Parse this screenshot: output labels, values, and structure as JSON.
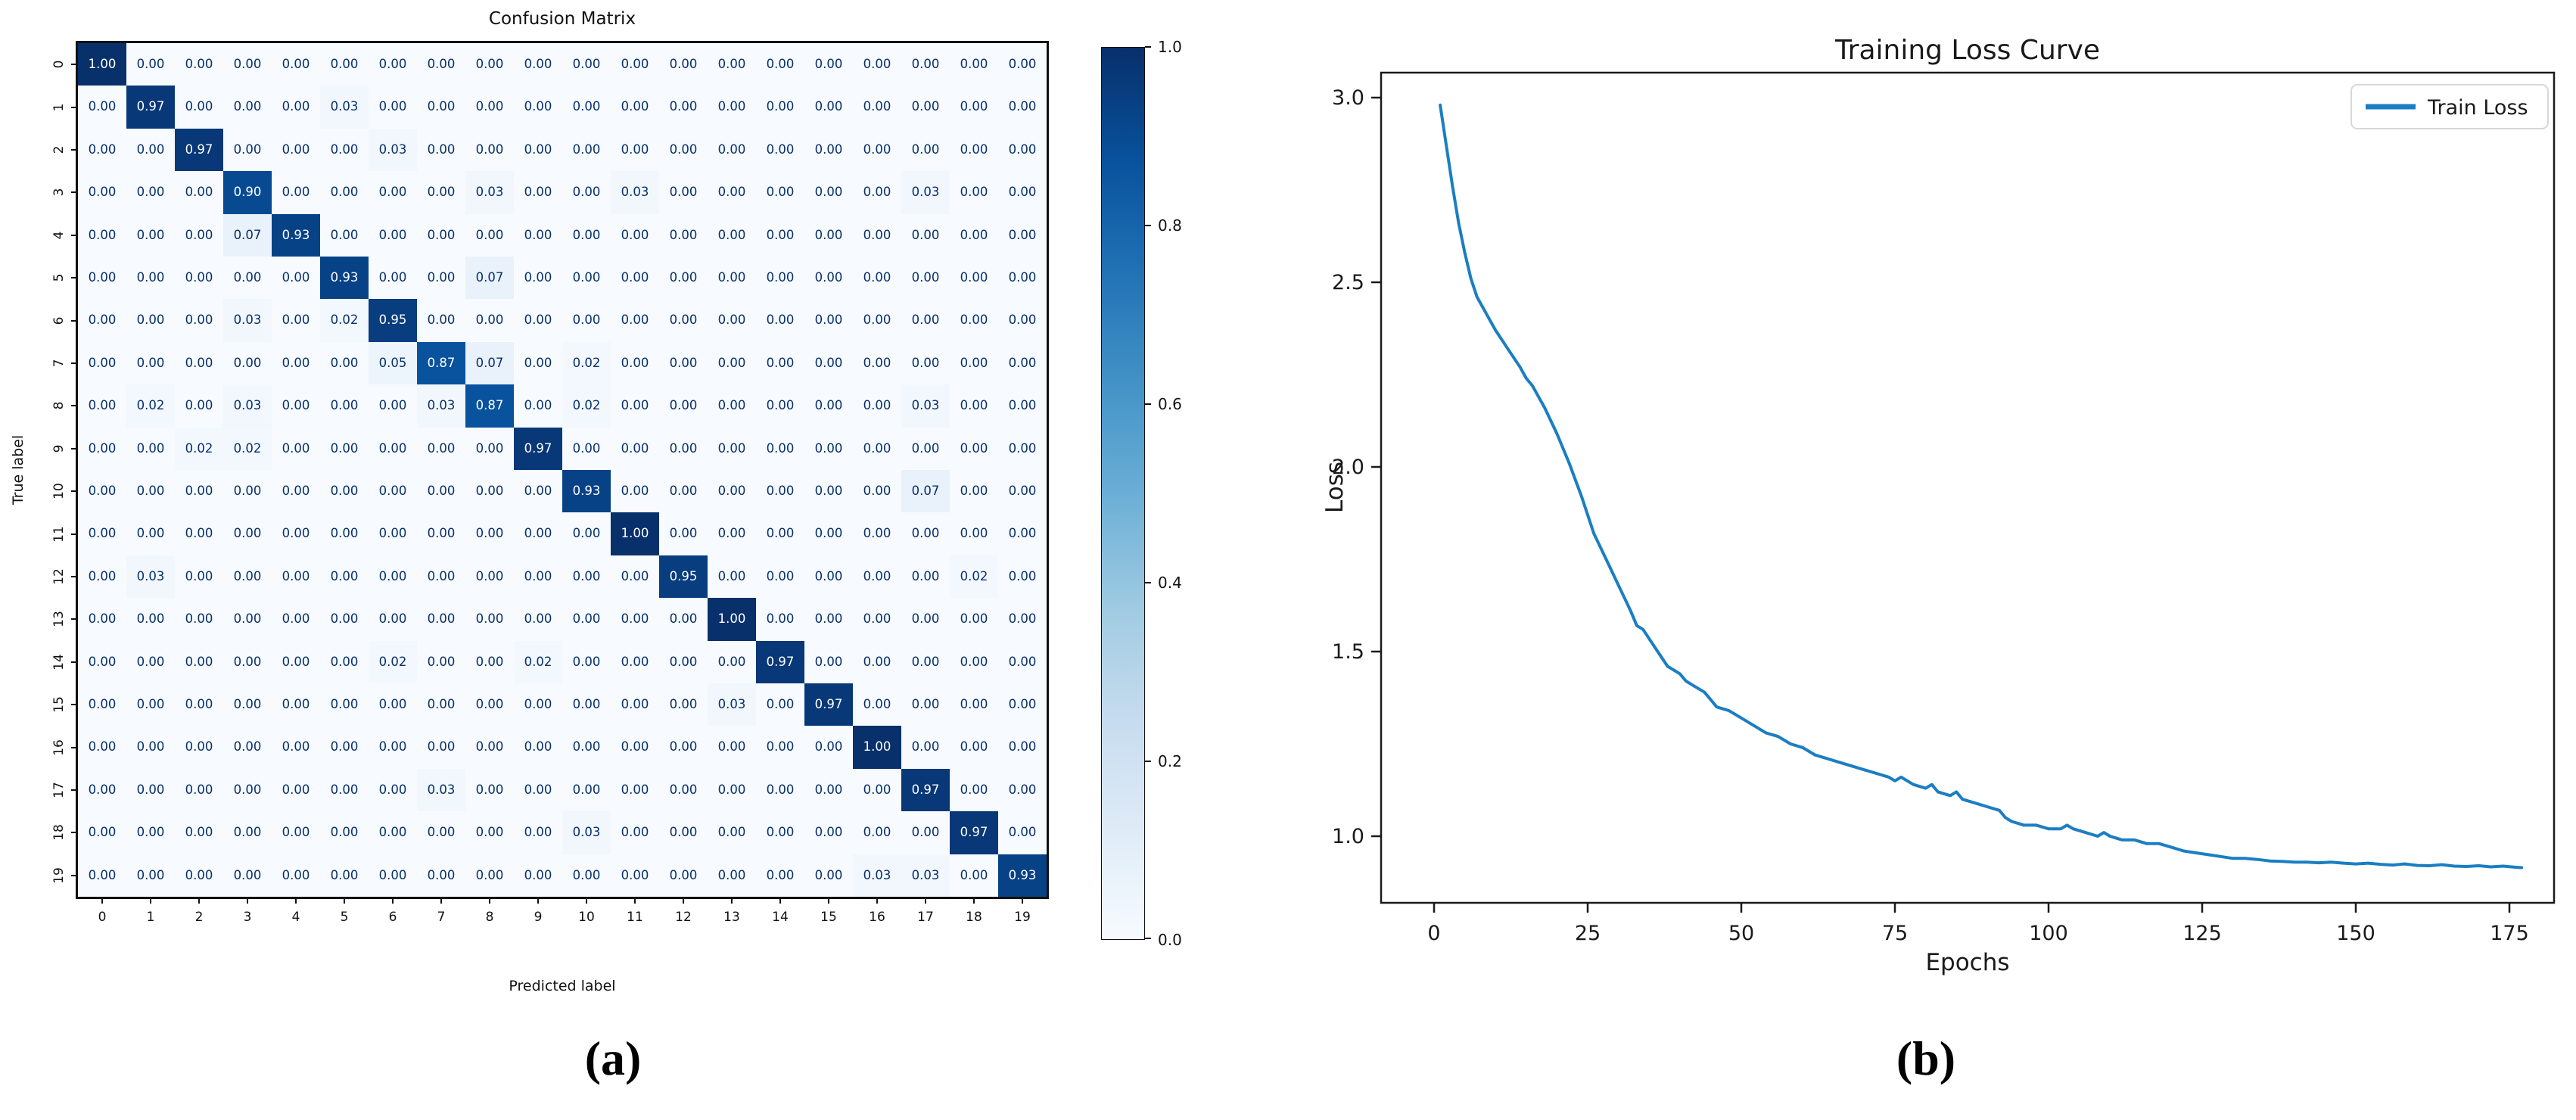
{
  "panel_a": {
    "title": "Confusion Matrix",
    "xlabel": "Predicted label",
    "ylabel": "True label",
    "caption": "(a)",
    "x_tick_labels": [
      "0",
      "1",
      "2",
      "3",
      "4",
      "5",
      "6",
      "7",
      "8",
      "9",
      "10",
      "11",
      "12",
      "13",
      "14",
      "15",
      "16",
      "17",
      "18",
      "19"
    ],
    "y_tick_labels": [
      "0",
      "1",
      "2",
      "3",
      "4",
      "5",
      "6",
      "7",
      "8",
      "9",
      "10",
      "11",
      "12",
      "13",
      "14",
      "15",
      "16",
      "17",
      "18",
      "19"
    ],
    "colorbar_tick_labels": [
      "1.0",
      "0.8",
      "0.6",
      "0.4",
      "0.2",
      "0.0"
    ]
  },
  "panel_b": {
    "title": "Training Loss Curve",
    "xlabel": "Epochs",
    "ylabel": "Loss",
    "caption": "(b)",
    "legend_label": "Train Loss",
    "x_tick_labels": [
      "0",
      "25",
      "50",
      "75",
      "100",
      "125",
      "150",
      "175"
    ],
    "y_tick_labels": [
      "3.0",
      "2.5",
      "2.0",
      "1.5",
      "1.0"
    ]
  },
  "colors": {
    "train_loss_line": "#1b7ec2",
    "text_dark_on_cell": "#08306b",
    "text_light_on_cell": "#ffffff",
    "axis_line": "#1a1a1a",
    "legend_border": "#d8d8d8",
    "blues_colormap_stops": [
      "#f7fbff",
      "#deebf7",
      "#c6dbef",
      "#9ecae1",
      "#6baed6",
      "#4292c6",
      "#2171b5",
      "#08519c",
      "#08306b"
    ]
  },
  "chart_data": [
    {
      "type": "heatmap",
      "title": "Confusion Matrix",
      "xlabel": "Predicted label",
      "ylabel": "True label",
      "x_labels": [
        "0",
        "1",
        "2",
        "3",
        "4",
        "5",
        "6",
        "7",
        "8",
        "9",
        "10",
        "11",
        "12",
        "13",
        "14",
        "15",
        "16",
        "17",
        "18",
        "19"
      ],
      "y_labels": [
        "0",
        "1",
        "2",
        "3",
        "4",
        "5",
        "6",
        "7",
        "8",
        "9",
        "10",
        "11",
        "12",
        "13",
        "14",
        "15",
        "16",
        "17",
        "18",
        "19"
      ],
      "colormap": "Blues",
      "vmin": 0.0,
      "vmax": 1.0,
      "colorbar_ticks": [
        1.0,
        0.8,
        0.6,
        0.4,
        0.2,
        0.0
      ],
      "value_format": "0.00",
      "values": [
        [
          1,
          0,
          0,
          0,
          0,
          0,
          0,
          0,
          0,
          0,
          0,
          0,
          0,
          0,
          0,
          0,
          0,
          0,
          0,
          0
        ],
        [
          0,
          0.97,
          0,
          0,
          0,
          0.03,
          0,
          0,
          0,
          0,
          0,
          0,
          0,
          0,
          0,
          0,
          0,
          0,
          0,
          0
        ],
        [
          0,
          0,
          0.97,
          0,
          0,
          0,
          0.03,
          0,
          0,
          0,
          0,
          0,
          0,
          0,
          0,
          0,
          0,
          0,
          0,
          0
        ],
        [
          0,
          0,
          0,
          0.9,
          0,
          0,
          0,
          0,
          0.03,
          0,
          0,
          0.03,
          0,
          0,
          0,
          0,
          0,
          0.03,
          0,
          0
        ],
        [
          0,
          0,
          0,
          0.07,
          0.93,
          0,
          0,
          0,
          0,
          0,
          0,
          0,
          0,
          0,
          0,
          0,
          0,
          0,
          0,
          0
        ],
        [
          0,
          0,
          0,
          0,
          0,
          0.93,
          0,
          0,
          0.07,
          0,
          0,
          0,
          0,
          0,
          0,
          0,
          0,
          0,
          0,
          0
        ],
        [
          0,
          0,
          0,
          0.03,
          0,
          0.02,
          0.95,
          0,
          0,
          0,
          0,
          0,
          0,
          0,
          0,
          0,
          0,
          0,
          0,
          0
        ],
        [
          0,
          0,
          0,
          0,
          0,
          0,
          0.05,
          0.87,
          0.07,
          0,
          0.02,
          0,
          0,
          0,
          0,
          0,
          0,
          0,
          0,
          0
        ],
        [
          0,
          0.02,
          0,
          0.03,
          0,
          0,
          0,
          0.03,
          0.87,
          0,
          0.02,
          0,
          0,
          0,
          0,
          0,
          0,
          0.03,
          0,
          0
        ],
        [
          0,
          0,
          0.02,
          0.02,
          0,
          0,
          0,
          0,
          0,
          0.97,
          0,
          0,
          0,
          0,
          0,
          0,
          0,
          0,
          0,
          0
        ],
        [
          0,
          0,
          0,
          0,
          0,
          0,
          0,
          0,
          0,
          0,
          0.93,
          0,
          0,
          0,
          0,
          0,
          0,
          0.07,
          0,
          0
        ],
        [
          0,
          0,
          0,
          0,
          0,
          0,
          0,
          0,
          0,
          0,
          0,
          1.0,
          0,
          0,
          0,
          0,
          0,
          0,
          0,
          0
        ],
        [
          0,
          0.03,
          0,
          0,
          0,
          0,
          0,
          0,
          0,
          0,
          0,
          0,
          0.95,
          0,
          0,
          0,
          0,
          0,
          0.02,
          0
        ],
        [
          0,
          0,
          0,
          0,
          0,
          0,
          0,
          0,
          0,
          0,
          0,
          0,
          0,
          1.0,
          0,
          0,
          0,
          0,
          0,
          0
        ],
        [
          0,
          0,
          0,
          0,
          0,
          0,
          0.02,
          0,
          0,
          0.02,
          0,
          0,
          0,
          0,
          0.97,
          0,
          0,
          0,
          0,
          0
        ],
        [
          0,
          0,
          0,
          0,
          0,
          0,
          0,
          0,
          0,
          0,
          0,
          0,
          0,
          0.03,
          0,
          0.97,
          0,
          0,
          0,
          0
        ],
        [
          0,
          0,
          0,
          0,
          0,
          0,
          0,
          0,
          0,
          0,
          0,
          0,
          0,
          0,
          0,
          0,
          1.0,
          0,
          0,
          0
        ],
        [
          0,
          0,
          0,
          0,
          0,
          0,
          0,
          0.03,
          0,
          0,
          0,
          0,
          0,
          0,
          0,
          0,
          0,
          0.97,
          0,
          0
        ],
        [
          0,
          0,
          0,
          0,
          0,
          0,
          0,
          0,
          0,
          0,
          0.03,
          0,
          0,
          0,
          0,
          0,
          0,
          0,
          0.97,
          0
        ],
        [
          0,
          0,
          0,
          0,
          0,
          0,
          0,
          0,
          0,
          0,
          0,
          0,
          0,
          0,
          0,
          0,
          0.03,
          0.03,
          0,
          0.93
        ]
      ]
    },
    {
      "type": "line",
      "title": "Training Loss Curve",
      "xlabel": "Epochs",
      "ylabel": "Loss",
      "legend_position": "upper right",
      "grid": false,
      "x_ticks": [
        0,
        25,
        50,
        75,
        100,
        125,
        150,
        175
      ],
      "y_ticks": [
        3.0,
        2.5,
        2.0,
        1.5,
        1.0
      ],
      "xlim": [
        -8.6,
        182.4
      ],
      "ylim": [
        0.83,
        3.07
      ],
      "series": [
        {
          "name": "Train Loss",
          "color": "#1b7ec2",
          "points": [
            [
              1,
              2.98
            ],
            [
              2,
              2.87
            ],
            [
              3,
              2.76
            ],
            [
              4,
              2.66
            ],
            [
              5,
              2.58
            ],
            [
              6,
              2.51
            ],
            [
              7,
              2.46
            ],
            [
              8,
              2.43
            ],
            [
              9,
              2.4
            ],
            [
              10,
              2.37
            ],
            [
              12,
              2.32
            ],
            [
              14,
              2.27
            ],
            [
              15,
              2.24
            ],
            [
              16,
              2.22
            ],
            [
              18,
              2.16
            ],
            [
              20,
              2.09
            ],
            [
              22,
              2.01
            ],
            [
              24,
              1.92
            ],
            [
              25,
              1.87
            ],
            [
              26,
              1.82
            ],
            [
              28,
              1.75
            ],
            [
              30,
              1.68
            ],
            [
              32,
              1.61
            ],
            [
              33,
              1.57
            ],
            [
              34,
              1.56
            ],
            [
              36,
              1.51
            ],
            [
              38,
              1.46
            ],
            [
              40,
              1.44
            ],
            [
              41,
              1.42
            ],
            [
              42,
              1.41
            ],
            [
              44,
              1.39
            ],
            [
              45,
              1.37
            ],
            [
              46,
              1.35
            ],
            [
              48,
              1.34
            ],
            [
              50,
              1.32
            ],
            [
              52,
              1.3
            ],
            [
              54,
              1.28
            ],
            [
              56,
              1.27
            ],
            [
              58,
              1.25
            ],
            [
              60,
              1.24
            ],
            [
              62,
              1.22
            ],
            [
              64,
              1.21
            ],
            [
              66,
              1.2
            ],
            [
              68,
              1.19
            ],
            [
              70,
              1.18
            ],
            [
              72,
              1.17
            ],
            [
              74,
              1.16
            ],
            [
              75,
              1.15
            ],
            [
              76,
              1.16
            ],
            [
              78,
              1.14
            ],
            [
              80,
              1.13
            ],
            [
              81,
              1.14
            ],
            [
              82,
              1.12
            ],
            [
              84,
              1.11
            ],
            [
              85,
              1.12
            ],
            [
              86,
              1.1
            ],
            [
              88,
              1.09
            ],
            [
              90,
              1.08
            ],
            [
              92,
              1.07
            ],
            [
              93,
              1.05
            ],
            [
              94,
              1.04
            ],
            [
              96,
              1.03
            ],
            [
              98,
              1.03
            ],
            [
              100,
              1.02
            ],
            [
              102,
              1.02
            ],
            [
              103,
              1.03
            ],
            [
              104,
              1.02
            ],
            [
              106,
              1.01
            ],
            [
              108,
              1.0
            ],
            [
              109,
              1.01
            ],
            [
              110,
              1.0
            ],
            [
              112,
              0.99
            ],
            [
              114,
              0.99
            ],
            [
              116,
              0.98
            ],
            [
              118,
              0.98
            ],
            [
              120,
              0.97
            ],
            [
              122,
              0.96
            ],
            [
              124,
              0.955
            ],
            [
              126,
              0.95
            ],
            [
              128,
              0.945
            ],
            [
              130,
              0.94
            ],
            [
              132,
              0.94
            ],
            [
              134,
              0.937
            ],
            [
              136,
              0.933
            ],
            [
              138,
              0.932
            ],
            [
              140,
              0.93
            ],
            [
              142,
              0.93
            ],
            [
              144,
              0.928
            ],
            [
              146,
              0.93
            ],
            [
              148,
              0.927
            ],
            [
              150,
              0.925
            ],
            [
              152,
              0.927
            ],
            [
              154,
              0.924
            ],
            [
              156,
              0.922
            ],
            [
              158,
              0.925
            ],
            [
              160,
              0.921
            ],
            [
              162,
              0.92
            ],
            [
              164,
              0.923
            ],
            [
              166,
              0.919
            ],
            [
              168,
              0.918
            ],
            [
              170,
              0.92
            ],
            [
              172,
              0.917
            ],
            [
              174,
              0.919
            ],
            [
              176,
              0.916
            ],
            [
              177,
              0.915
            ]
          ]
        }
      ]
    }
  ]
}
